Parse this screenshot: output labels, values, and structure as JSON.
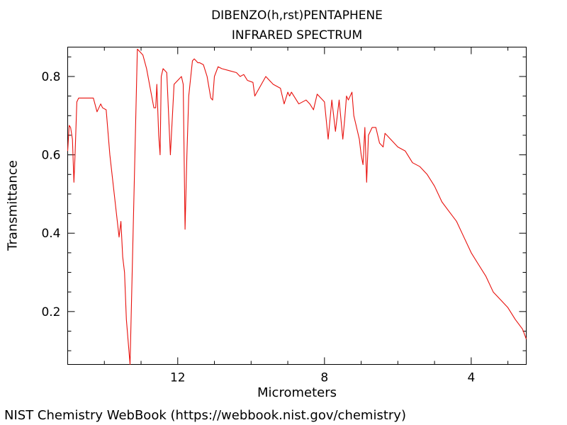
{
  "chart_data": {
    "type": "line",
    "title": "DIBENZO(h,rst)PENTAPHENE",
    "subtitle": "INFRARED SPECTRUM",
    "xlabel": "Micrometers",
    "ylabel": "Transmittance",
    "x_reversed": true,
    "xlim": [
      15.0,
      2.5
    ],
    "ylim": [
      0.065,
      0.875
    ],
    "x_ticks": [
      12,
      8,
      4
    ],
    "x_tick_labels": [
      "12",
      "8",
      "4"
    ],
    "x_minor_ticks": [
      14,
      13,
      11,
      10,
      9,
      7,
      6,
      5,
      3
    ],
    "y_ticks": [
      0.2,
      0.4,
      0.6,
      0.8
    ],
    "y_tick_labels": [
      "0.2",
      "0.4",
      "0.6",
      "0.8"
    ],
    "grid": false,
    "series": [
      {
        "color": "#e8100c",
        "x": [
          15.0,
          14.96,
          14.92,
          14.87,
          14.83,
          14.8,
          14.75,
          14.7,
          14.6,
          14.5,
          14.3,
          14.2,
          14.1,
          14.05,
          13.95,
          13.85,
          13.6,
          13.55,
          13.5,
          13.45,
          13.4,
          13.3,
          13.1,
          12.95,
          12.85,
          12.65,
          12.6,
          12.57,
          12.52,
          12.48,
          12.45,
          12.4,
          12.3,
          12.2,
          12.1,
          11.9,
          11.85,
          11.8,
          11.75,
          11.7,
          11.6,
          11.55,
          11.5,
          11.45,
          11.4,
          11.3,
          11.2,
          11.1,
          11.05,
          11.0,
          10.9,
          10.8,
          10.6,
          10.4,
          10.3,
          10.2,
          10.1,
          9.95,
          9.9,
          9.6,
          9.4,
          9.2,
          9.1,
          9.0,
          8.95,
          8.9,
          8.7,
          8.5,
          8.4,
          8.3,
          8.2,
          8.0,
          7.9,
          7.8,
          7.7,
          7.6,
          7.5,
          7.45,
          7.4,
          7.35,
          7.25,
          7.2,
          7.1,
          7.05,
          7.0,
          6.95,
          6.9,
          6.85,
          6.8,
          6.7,
          6.6,
          6.5,
          6.4,
          6.35,
          6.3,
          6.2,
          6.0,
          5.8,
          5.6,
          5.4,
          5.2,
          5.0,
          4.8,
          4.6,
          4.4,
          4.2,
          4.0,
          3.8,
          3.6,
          3.4,
          3.2,
          3.0,
          2.8,
          2.6,
          2.5
        ],
        "y": [
          0.61,
          0.675,
          0.67,
          0.64,
          0.53,
          0.6,
          0.735,
          0.745,
          0.745,
          0.745,
          0.745,
          0.71,
          0.73,
          0.72,
          0.715,
          0.6,
          0.39,
          0.43,
          0.34,
          0.3,
          0.18,
          0.065,
          0.87,
          0.855,
          0.82,
          0.72,
          0.72,
          0.78,
          0.65,
          0.6,
          0.8,
          0.82,
          0.81,
          0.6,
          0.78,
          0.8,
          0.78,
          0.41,
          0.6,
          0.75,
          0.84,
          0.845,
          0.84,
          0.835,
          0.835,
          0.83,
          0.8,
          0.745,
          0.74,
          0.8,
          0.825,
          0.82,
          0.815,
          0.81,
          0.8,
          0.805,
          0.79,
          0.785,
          0.75,
          0.8,
          0.78,
          0.77,
          0.73,
          0.76,
          0.75,
          0.76,
          0.73,
          0.74,
          0.73,
          0.715,
          0.755,
          0.735,
          0.64,
          0.74,
          0.66,
          0.74,
          0.64,
          0.69,
          0.75,
          0.74,
          0.76,
          0.7,
          0.66,
          0.64,
          0.6,
          0.575,
          0.67,
          0.53,
          0.65,
          0.67,
          0.67,
          0.63,
          0.62,
          0.655,
          0.65,
          0.64,
          0.62,
          0.61,
          0.58,
          0.57,
          0.55,
          0.52,
          0.48,
          0.455,
          0.43,
          0.39,
          0.35,
          0.32,
          0.29,
          0.25,
          0.23,
          0.21,
          0.18,
          0.155,
          0.13
        ]
      }
    ]
  },
  "footer": {
    "credit": "NIST Chemistry WebBook (https://webbook.nist.gov/chemistry)"
  }
}
